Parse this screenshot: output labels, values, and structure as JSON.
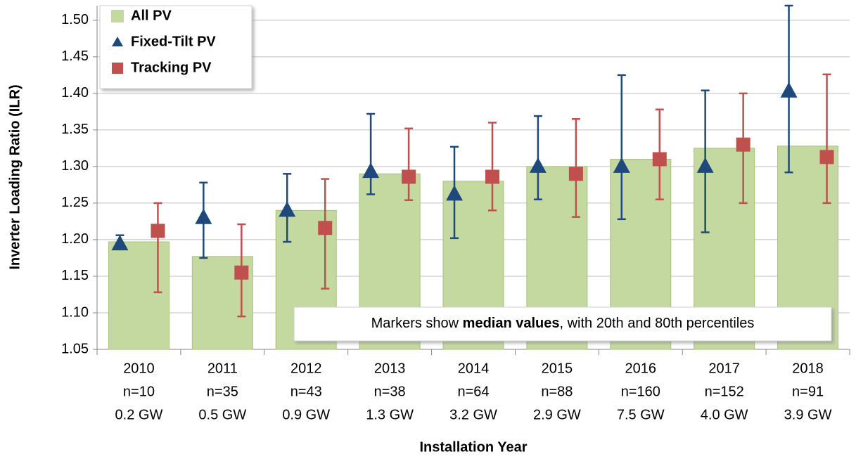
{
  "chart_data": {
    "type": "bar",
    "y_label": "Inverter Loading Ratio (ILR)",
    "x_label": "Installation Year",
    "annotation": [
      "Markers show ",
      "median values",
      ", with 20th and 80th percentiles"
    ],
    "categories": [
      "2010",
      "2011",
      "2012",
      "2013",
      "2014",
      "2015",
      "2016",
      "2017",
      "2018"
    ],
    "sample_sizes": [
      "n=10",
      "n=35",
      "n=43",
      "n=38",
      "n=64",
      "n=88",
      "n=160",
      "n=152",
      "n=91"
    ],
    "capacities": [
      "0.2 GW",
      "0.5 GW",
      "0.9 GW",
      "1.3 GW",
      "3.2 GW",
      "2.9 GW",
      "7.5 GW",
      "4.0 GW",
      "3.9 GW"
    ],
    "ylim": [
      1.05,
      1.52
    ],
    "yticks": [
      1.05,
      {
        "value": 1.1,
        "label": "1.10"
      },
      1.15,
      {
        "value": 1.2,
        "label": "1.20"
      },
      1.25,
      {
        "value": 1.3,
        "label": "1.30"
      },
      1.35,
      {
        "value": 1.4,
        "label": "1.40"
      },
      1.45,
      {
        "value": 1.5,
        "label": "1.50"
      }
    ],
    "grid": true,
    "legend": "upper left",
    "series": [
      {
        "name": "All PV",
        "color": "#c4d9a0",
        "mark": "bar",
        "values": [
          1.197,
          1.177,
          1.24,
          1.29,
          1.28,
          1.3,
          1.31,
          1.325,
          1.328
        ]
      },
      {
        "name": "Fixed-Tilt PV",
        "color": "#1f497d",
        "mark": "triangle",
        "values": [
          1.194,
          1.23,
          1.24,
          1.293,
          1.262,
          1.3,
          1.3,
          1.3,
          1.403
        ],
        "p20": [
          1.19,
          1.175,
          1.197,
          1.262,
          1.202,
          1.255,
          1.228,
          1.21,
          1.292
        ],
        "p80": [
          1.206,
          1.278,
          1.29,
          1.372,
          1.327,
          1.369,
          1.425,
          1.404,
          1.52
        ]
      },
      {
        "name": "Tracking PV",
        "color": "#c0504d",
        "mark": "square",
        "values": [
          1.212,
          1.155,
          1.216,
          1.286,
          1.286,
          1.29,
          1.31,
          1.33,
          1.313
        ],
        "p20": [
          1.128,
          1.095,
          1.133,
          1.254,
          1.24,
          1.231,
          1.255,
          1.25,
          1.25
        ],
        "p80": [
          1.25,
          1.221,
          1.283,
          1.352,
          1.36,
          1.365,
          1.378,
          1.4,
          1.426
        ]
      }
    ]
  }
}
